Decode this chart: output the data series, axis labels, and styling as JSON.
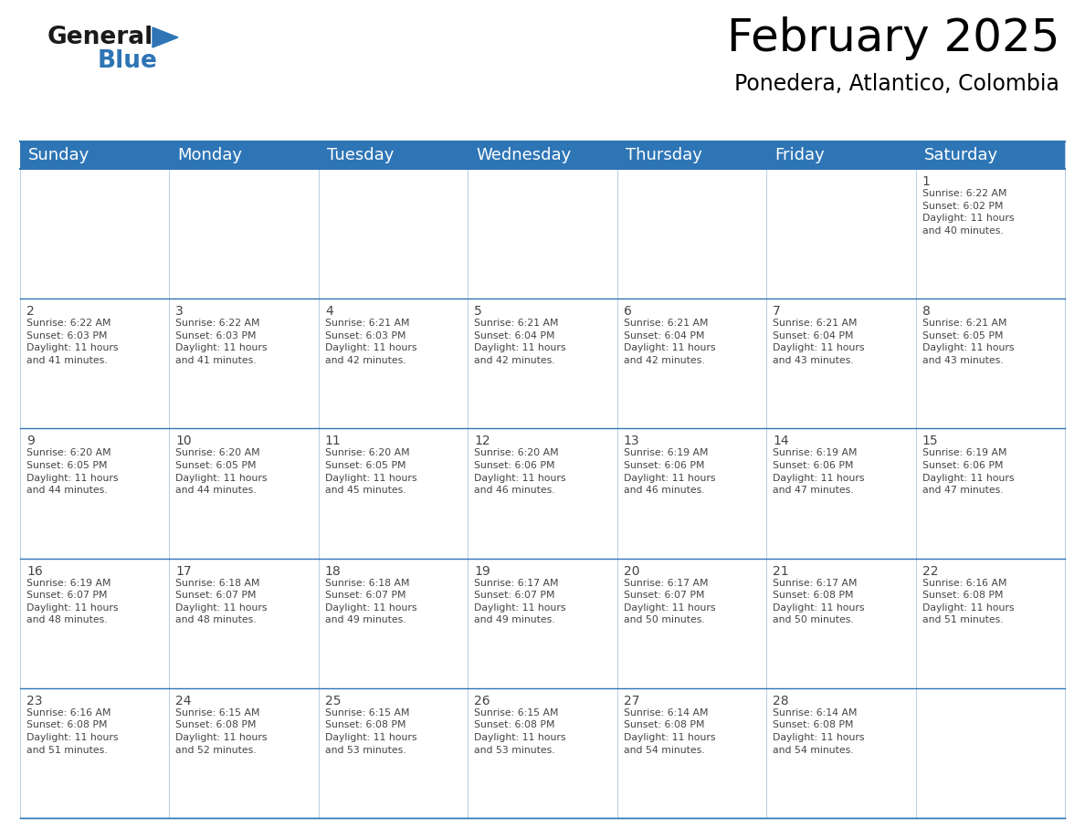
{
  "title": "February 2025",
  "subtitle": "Ponedera, Atlantico, Colombia",
  "header_color": "#2E75B6",
  "header_text_color": "#FFFFFF",
  "cell_bg_color": "#FFFFFF",
  "border_color": "#2E75B6",
  "day_headers": [
    "Sunday",
    "Monday",
    "Tuesday",
    "Wednesday",
    "Thursday",
    "Friday",
    "Saturday"
  ],
  "title_fontsize": 36,
  "subtitle_fontsize": 17,
  "header_fontsize": 13,
  "day_num_fontsize": 10,
  "info_fontsize": 7.8,
  "calendar": [
    [
      {
        "day": "",
        "info": ""
      },
      {
        "day": "",
        "info": ""
      },
      {
        "day": "",
        "info": ""
      },
      {
        "day": "",
        "info": ""
      },
      {
        "day": "",
        "info": ""
      },
      {
        "day": "",
        "info": ""
      },
      {
        "day": "1",
        "info": "Sunrise: 6:22 AM\nSunset: 6:02 PM\nDaylight: 11 hours\nand 40 minutes."
      }
    ],
    [
      {
        "day": "2",
        "info": "Sunrise: 6:22 AM\nSunset: 6:03 PM\nDaylight: 11 hours\nand 41 minutes."
      },
      {
        "day": "3",
        "info": "Sunrise: 6:22 AM\nSunset: 6:03 PM\nDaylight: 11 hours\nand 41 minutes."
      },
      {
        "day": "4",
        "info": "Sunrise: 6:21 AM\nSunset: 6:03 PM\nDaylight: 11 hours\nand 42 minutes."
      },
      {
        "day": "5",
        "info": "Sunrise: 6:21 AM\nSunset: 6:04 PM\nDaylight: 11 hours\nand 42 minutes."
      },
      {
        "day": "6",
        "info": "Sunrise: 6:21 AM\nSunset: 6:04 PM\nDaylight: 11 hours\nand 42 minutes."
      },
      {
        "day": "7",
        "info": "Sunrise: 6:21 AM\nSunset: 6:04 PM\nDaylight: 11 hours\nand 43 minutes."
      },
      {
        "day": "8",
        "info": "Sunrise: 6:21 AM\nSunset: 6:05 PM\nDaylight: 11 hours\nand 43 minutes."
      }
    ],
    [
      {
        "day": "9",
        "info": "Sunrise: 6:20 AM\nSunset: 6:05 PM\nDaylight: 11 hours\nand 44 minutes."
      },
      {
        "day": "10",
        "info": "Sunrise: 6:20 AM\nSunset: 6:05 PM\nDaylight: 11 hours\nand 44 minutes."
      },
      {
        "day": "11",
        "info": "Sunrise: 6:20 AM\nSunset: 6:05 PM\nDaylight: 11 hours\nand 45 minutes."
      },
      {
        "day": "12",
        "info": "Sunrise: 6:20 AM\nSunset: 6:06 PM\nDaylight: 11 hours\nand 46 minutes."
      },
      {
        "day": "13",
        "info": "Sunrise: 6:19 AM\nSunset: 6:06 PM\nDaylight: 11 hours\nand 46 minutes."
      },
      {
        "day": "14",
        "info": "Sunrise: 6:19 AM\nSunset: 6:06 PM\nDaylight: 11 hours\nand 47 minutes."
      },
      {
        "day": "15",
        "info": "Sunrise: 6:19 AM\nSunset: 6:06 PM\nDaylight: 11 hours\nand 47 minutes."
      }
    ],
    [
      {
        "day": "16",
        "info": "Sunrise: 6:19 AM\nSunset: 6:07 PM\nDaylight: 11 hours\nand 48 minutes."
      },
      {
        "day": "17",
        "info": "Sunrise: 6:18 AM\nSunset: 6:07 PM\nDaylight: 11 hours\nand 48 minutes."
      },
      {
        "day": "18",
        "info": "Sunrise: 6:18 AM\nSunset: 6:07 PM\nDaylight: 11 hours\nand 49 minutes."
      },
      {
        "day": "19",
        "info": "Sunrise: 6:17 AM\nSunset: 6:07 PM\nDaylight: 11 hours\nand 49 minutes."
      },
      {
        "day": "20",
        "info": "Sunrise: 6:17 AM\nSunset: 6:07 PM\nDaylight: 11 hours\nand 50 minutes."
      },
      {
        "day": "21",
        "info": "Sunrise: 6:17 AM\nSunset: 6:08 PM\nDaylight: 11 hours\nand 50 minutes."
      },
      {
        "day": "22",
        "info": "Sunrise: 6:16 AM\nSunset: 6:08 PM\nDaylight: 11 hours\nand 51 minutes."
      }
    ],
    [
      {
        "day": "23",
        "info": "Sunrise: 6:16 AM\nSunset: 6:08 PM\nDaylight: 11 hours\nand 51 minutes."
      },
      {
        "day": "24",
        "info": "Sunrise: 6:15 AM\nSunset: 6:08 PM\nDaylight: 11 hours\nand 52 minutes."
      },
      {
        "day": "25",
        "info": "Sunrise: 6:15 AM\nSunset: 6:08 PM\nDaylight: 11 hours\nand 53 minutes."
      },
      {
        "day": "26",
        "info": "Sunrise: 6:15 AM\nSunset: 6:08 PM\nDaylight: 11 hours\nand 53 minutes."
      },
      {
        "day": "27",
        "info": "Sunrise: 6:14 AM\nSunset: 6:08 PM\nDaylight: 11 hours\nand 54 minutes."
      },
      {
        "day": "28",
        "info": "Sunrise: 6:14 AM\nSunset: 6:08 PM\nDaylight: 11 hours\nand 54 minutes."
      },
      {
        "day": "",
        "info": ""
      }
    ]
  ],
  "logo_general_color": "#1a1a1a",
  "logo_blue_color": "#2E75B6",
  "grid_line_color": "#2E75B6",
  "text_color": "#444444"
}
